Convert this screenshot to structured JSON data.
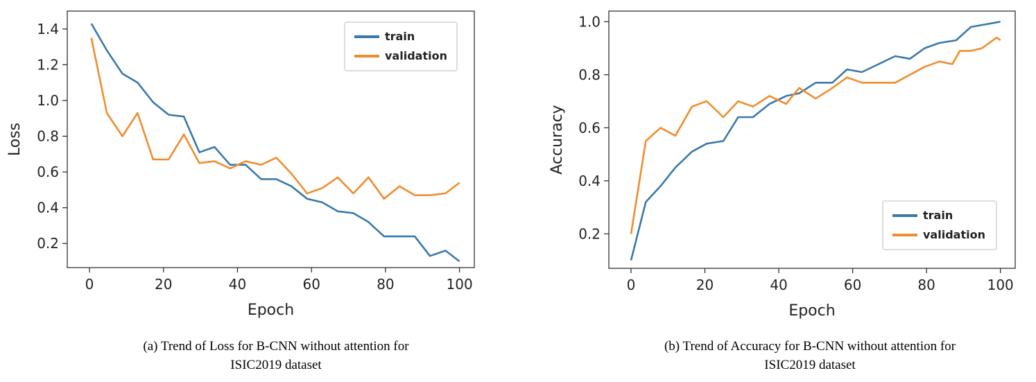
{
  "chart_data": [
    {
      "type": "line",
      "xlabel": "Epoch",
      "ylabel": "Loss",
      "xlim": [
        -6,
        104
      ],
      "ylim": [
        0.065,
        1.5
      ],
      "xticks": [
        0,
        20,
        40,
        60,
        80,
        100
      ],
      "xtick_labels": [
        "0",
        "20",
        "40",
        "60",
        "80",
        "100"
      ],
      "yticks": [
        0.2,
        0.4,
        0.6,
        0.8,
        1.0,
        1.2,
        1.4
      ],
      "ytick_labels": [
        "0.2",
        "0.4",
        "0.6",
        "0.8",
        "1.0",
        "1.2",
        "1.4"
      ],
      "legend_position": "top-right",
      "series": [
        {
          "name": "train",
          "color": "#3b78a8",
          "x": [
            0.5,
            4.7,
            8.9,
            13,
            17.2,
            21.4,
            25.5,
            29.7,
            33.8,
            38,
            42.2,
            46.4,
            50.5,
            54.6,
            58.8,
            62.9,
            67.1,
            71.3,
            75.4,
            79.6,
            83.8,
            87.9,
            92,
            96.2,
            100
          ],
          "y": [
            1.43,
            1.28,
            1.15,
            1.1,
            0.99,
            0.92,
            0.91,
            0.71,
            0.74,
            0.64,
            0.64,
            0.56,
            0.56,
            0.52,
            0.45,
            0.43,
            0.38,
            0.37,
            0.32,
            0.24,
            0.24,
            0.24,
            0.13,
            0.16,
            0.1
          ]
        },
        {
          "name": "validation",
          "color": "#f08c2e",
          "x": [
            0.5,
            4.7,
            8.9,
            13,
            17.2,
            21.4,
            25.5,
            29.7,
            33.8,
            38,
            42.2,
            46.4,
            50.5,
            54.6,
            58.8,
            62.9,
            67.1,
            71.3,
            75.4,
            79.6,
            83.8,
            87.9,
            92,
            96.2,
            100
          ],
          "y": [
            1.35,
            0.93,
            0.8,
            0.93,
            0.67,
            0.67,
            0.81,
            0.65,
            0.66,
            0.62,
            0.66,
            0.64,
            0.68,
            0.59,
            0.48,
            0.51,
            0.57,
            0.48,
            0.57,
            0.45,
            0.52,
            0.47,
            0.47,
            0.48,
            0.54
          ]
        }
      ],
      "caption_lines": [
        "(a) Trend of Loss for B-CNN without attention for",
        "ISIC2019 dataset"
      ]
    },
    {
      "type": "line",
      "xlabel": "Epoch",
      "ylabel": "Accuracy",
      "xlim": [
        -6,
        104
      ],
      "ylim": [
        0.07,
        1.04
      ],
      "xticks": [
        0,
        20,
        40,
        60,
        80,
        100
      ],
      "xtick_labels": [
        "0",
        "20",
        "40",
        "60",
        "80",
        "100"
      ],
      "yticks": [
        0.2,
        0.4,
        0.6,
        0.8,
        1.0
      ],
      "ytick_labels": [
        "0.2",
        "0.4",
        "0.6",
        "0.8",
        "1.0"
      ],
      "legend_position": "lower-right",
      "series": [
        {
          "name": "train",
          "color": "#3b78a8",
          "x": [
            0,
            4,
            8,
            12,
            16.5,
            20.5,
            25,
            29,
            33,
            37.5,
            42,
            45.5,
            50,
            54.5,
            58.5,
            62.5,
            67,
            71.5,
            75.5,
            79.5,
            83.5,
            88,
            92,
            96,
            100
          ],
          "y": [
            0.1,
            0.32,
            0.38,
            0.45,
            0.51,
            0.54,
            0.55,
            0.64,
            0.64,
            0.69,
            0.72,
            0.73,
            0.77,
            0.77,
            0.82,
            0.81,
            0.84,
            0.87,
            0.86,
            0.9,
            0.92,
            0.93,
            0.98,
            0.99,
            1.0
          ]
        },
        {
          "name": "validation",
          "color": "#f08c2e",
          "x": [
            0,
            4,
            8,
            12,
            16.5,
            20.5,
            25,
            29,
            33,
            37.5,
            42,
            45.5,
            50,
            54.5,
            58.5,
            62.5,
            67,
            71.5,
            75.5,
            79.5,
            83.5,
            87,
            89,
            92,
            95,
            99,
            100
          ],
          "y": [
            0.2,
            0.55,
            0.6,
            0.57,
            0.68,
            0.7,
            0.64,
            0.7,
            0.68,
            0.72,
            0.69,
            0.75,
            0.71,
            0.75,
            0.79,
            0.77,
            0.77,
            0.77,
            0.8,
            0.83,
            0.85,
            0.84,
            0.89,
            0.89,
            0.9,
            0.94,
            0.93
          ]
        }
      ],
      "caption_lines": [
        "(b) Trend of Accuracy for B-CNN without attention for",
        "ISIC2019 dataset"
      ]
    }
  ]
}
